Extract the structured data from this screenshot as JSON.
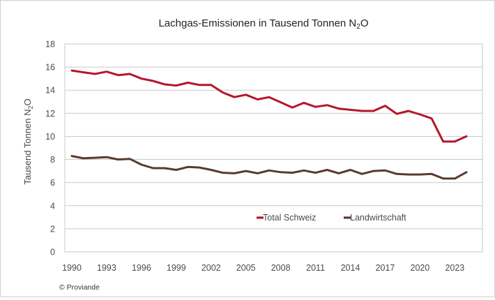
{
  "chart_data": {
    "type": "line",
    "title": "Lachgas-Emissionen in Tausend Tonnen N",
    "title_sub": "2",
    "title_suffix": "O",
    "ylabel": "Tausend Tonnen N",
    "ylabel_sub": "2",
    "ylabel_suffix": "O",
    "xlabel": "",
    "ylim": [
      0,
      18
    ],
    "yticks": [
      0,
      2,
      4,
      6,
      8,
      10,
      12,
      14,
      16,
      18
    ],
    "xlim": [
      1990,
      2024
    ],
    "xticks": [
      1990,
      1993,
      1996,
      1999,
      2002,
      2005,
      2008,
      2011,
      2014,
      2017,
      2020,
      2023
    ],
    "grid": "horizontal",
    "legend": "inside-bottom-center",
    "x": [
      1990,
      1991,
      1992,
      1993,
      1994,
      1995,
      1996,
      1997,
      1998,
      1999,
      2000,
      2001,
      2002,
      2003,
      2004,
      2005,
      2006,
      2007,
      2008,
      2009,
      2010,
      2011,
      2012,
      2013,
      2014,
      2015,
      2016,
      2017,
      2018,
      2019,
      2020,
      2021,
      2022,
      2023,
      2024
    ],
    "series": [
      {
        "name": "Total Schweiz",
        "color": "#b5162b",
        "values": [
          15.7,
          15.55,
          15.4,
          15.6,
          15.3,
          15.4,
          15.0,
          14.8,
          14.5,
          14.4,
          14.65,
          14.45,
          14.45,
          13.8,
          13.4,
          13.6,
          13.2,
          13.4,
          12.95,
          12.5,
          12.9,
          12.55,
          12.7,
          12.4,
          12.3,
          12.2,
          12.2,
          12.65,
          11.95,
          12.2,
          11.9,
          11.55,
          9.55,
          9.55,
          10.0
        ]
      },
      {
        "name": "Landwirtschaft",
        "color": "#5a3a2c",
        "values": [
          8.3,
          8.1,
          8.15,
          8.2,
          8.0,
          8.05,
          7.55,
          7.25,
          7.25,
          7.1,
          7.35,
          7.3,
          7.1,
          6.85,
          6.8,
          7.0,
          6.8,
          7.05,
          6.9,
          6.85,
          7.05,
          6.85,
          7.1,
          6.8,
          7.1,
          6.75,
          7.0,
          7.05,
          6.75,
          6.7,
          6.7,
          6.75,
          6.35,
          6.35,
          6.9
        ]
      }
    ]
  },
  "credit": "© Proviande"
}
